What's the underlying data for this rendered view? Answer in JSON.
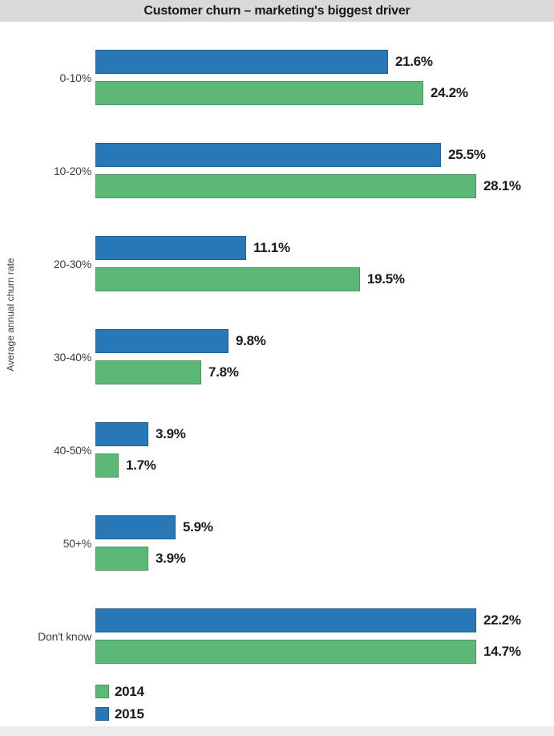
{
  "title": "Customer churn – marketing's biggest driver",
  "colors": {
    "title_band": "#d9d9d9",
    "bottom_band": "#ececec",
    "series_2014": "#5cb876",
    "series_2015": "#2878b8",
    "text": "#1a1a1a"
  },
  "chart_data": {
    "type": "bar",
    "orientation": "horizontal",
    "title": "Customer churn – marketing's biggest driver",
    "xlabel": "",
    "ylabel": "Average annual churn rate",
    "grid": false,
    "axis_note": "No x-axis shown; values printed as bold labels at bar ends",
    "categories": [
      "0-10%",
      "10-20%",
      "20-30%",
      "30-40%",
      "40-50%",
      "50+%",
      "Don't know"
    ],
    "series": [
      {
        "name": "2015",
        "color": "#2878b8",
        "values": [
          21.6,
          25.5,
          11.1,
          9.8,
          3.9,
          5.9,
          22.2
        ]
      },
      {
        "name": "2014",
        "color": "#5cb876",
        "values": [
          24.2,
          28.1,
          19.5,
          7.8,
          1.7,
          3.9,
          14.7
        ]
      }
    ],
    "bar_order_top_to_bottom": [
      "2015",
      "2014"
    ],
    "legend": {
      "position": "bottom-left",
      "entries": [
        {
          "label": "2014",
          "color": "#5cb876"
        },
        {
          "label": "2015",
          "color": "#2878b8"
        }
      ]
    },
    "render_note": "'Don't know' bars are drawn full plot width in the source image, not proportional to their values",
    "groups": [
      {
        "category": "0-10%",
        "bars": [
          {
            "series": "2015",
            "value": 21.6,
            "label": "21.6%",
            "display": 21.6
          },
          {
            "series": "2014",
            "value": 24.2,
            "label": "24.2%",
            "display": 24.2
          }
        ]
      },
      {
        "category": "10-20%",
        "bars": [
          {
            "series": "2015",
            "value": 25.5,
            "label": "25.5%",
            "display": 25.5
          },
          {
            "series": "2014",
            "value": 28.1,
            "label": "28.1%",
            "display": 28.1
          }
        ]
      },
      {
        "category": "20-30%",
        "bars": [
          {
            "series": "2015",
            "value": 11.1,
            "label": "11.1%",
            "display": 11.1
          },
          {
            "series": "2014",
            "value": 19.5,
            "label": "19.5%",
            "display": 19.5
          }
        ]
      },
      {
        "category": "30-40%",
        "bars": [
          {
            "series": "2015",
            "value": 9.8,
            "label": "9.8%",
            "display": 9.8
          },
          {
            "series": "2014",
            "value": 7.8,
            "label": "7.8%",
            "display": 7.8
          }
        ]
      },
      {
        "category": "40-50%",
        "bars": [
          {
            "series": "2015",
            "value": 3.9,
            "label": "3.9%",
            "display": 3.9
          },
          {
            "series": "2014",
            "value": 1.7,
            "label": "1.7%",
            "display": 1.7
          }
        ]
      },
      {
        "category": "50+%",
        "bars": [
          {
            "series": "2015",
            "value": 5.9,
            "label": "5.9%",
            "display": 5.9
          },
          {
            "series": "2014",
            "value": 3.9,
            "label": "3.9%",
            "display": 3.9
          }
        ]
      },
      {
        "category": "Don't know",
        "bars": [
          {
            "series": "2015",
            "value": 22.2,
            "label": "22.2%",
            "display": 28.1
          },
          {
            "series": "2014",
            "value": 14.7,
            "label": "14.7%",
            "display": 28.1
          }
        ]
      }
    ]
  }
}
